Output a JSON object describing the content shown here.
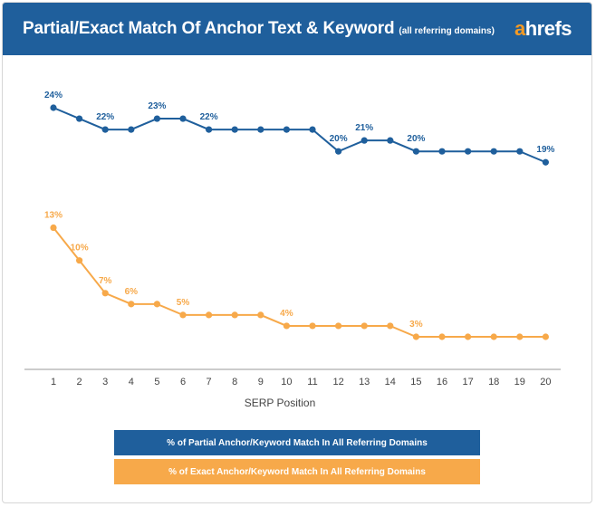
{
  "header": {
    "title": "Partial/Exact Match Of Anchor Text & Keyword",
    "subtitle": "(all referring domains)",
    "logo_accent": "a",
    "logo_rest": "hrefs"
  },
  "colors": {
    "header_bg": "#1f5f9c",
    "partial": "#1f5f9c",
    "exact": "#f7a94a",
    "axis": "#888888"
  },
  "chart_data": {
    "type": "line",
    "xlabel": "SERP Position",
    "ylabel": "",
    "x": [
      1,
      2,
      3,
      4,
      5,
      6,
      7,
      8,
      9,
      10,
      11,
      12,
      13,
      14,
      15,
      16,
      17,
      18,
      19,
      20
    ],
    "ylim": [
      0,
      26
    ],
    "grid": false,
    "legend_placement": "bottom",
    "series": [
      {
        "name": "% of Partial Anchor/Keyword Match In All Referring Domains",
        "color": "#1f5f9c",
        "values": [
          24,
          23,
          22,
          22,
          23,
          23,
          22,
          22,
          22,
          22,
          22,
          20,
          21,
          21,
          20,
          20,
          20,
          20,
          20,
          19
        ],
        "labels": [
          {
            "index": 0,
            "text": "24%"
          },
          {
            "index": 2,
            "text": "22%"
          },
          {
            "index": 4,
            "text": "23%"
          },
          {
            "index": 6,
            "text": "22%"
          },
          {
            "index": 11,
            "text": "20%"
          },
          {
            "index": 12,
            "text": "21%"
          },
          {
            "index": 14,
            "text": "20%"
          },
          {
            "index": 19,
            "text": "19%"
          }
        ]
      },
      {
        "name": "% of Exact Anchor/Keyword Match In All Referring Domains",
        "color": "#f7a94a",
        "values": [
          13,
          10,
          7,
          6,
          6,
          5,
          5,
          5,
          5,
          4,
          4,
          4,
          4,
          4,
          3,
          3,
          3,
          3,
          3,
          3
        ],
        "labels": [
          {
            "index": 0,
            "text": "13%"
          },
          {
            "index": 1,
            "text": "10%"
          },
          {
            "index": 2,
            "text": "7%"
          },
          {
            "index": 3,
            "text": "6%"
          },
          {
            "index": 5,
            "text": "5%"
          },
          {
            "index": 9,
            "text": "4%"
          },
          {
            "index": 14,
            "text": "3%"
          }
        ]
      }
    ]
  }
}
